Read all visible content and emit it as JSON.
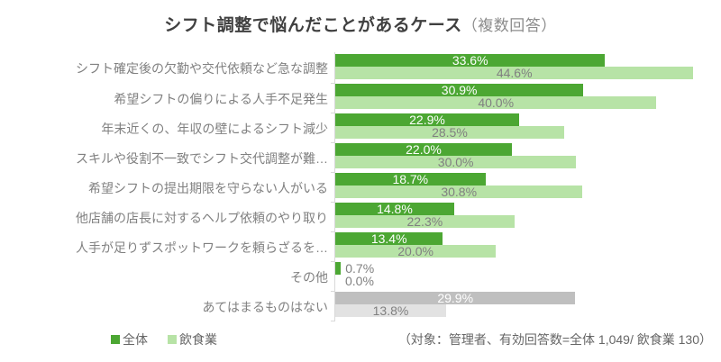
{
  "title": {
    "main": "シフト調整で悩んだことがあるケース",
    "suffix": "（複数回答）"
  },
  "footnote": "（対象：管理者、有効回答数=全体 1,049/ 飲食業 130）",
  "colors": {
    "series1": "#4CA733",
    "series2": "#B7E3A6",
    "series1_muted": "#BFBFBF",
    "series2_muted": "#E2E2E2",
    "label_on_dark": "#FFFFFF",
    "label_gray": "#808080",
    "axis": "#D9D9D9"
  },
  "chart_data": {
    "type": "bar",
    "orientation": "horizontal",
    "title": "シフト調整で悩んだことがあるケース（複数回答）",
    "categories": [
      "シフト確定後の欠勤や交代依頼など急な調整",
      "希望シフトの偏りによる人手不足発生",
      "年末近くの、年収の壁によるシフト減少",
      "スキルや役割不一致でシフト交代調整が難…",
      "希望シフトの提出期限を守らない人がいる",
      "他店舗の店長に対するヘルプ依頼のやり取り",
      "人手が足りずスポットワークを頼らざるを…",
      "その他",
      "あてはまるものはない"
    ],
    "series": [
      {
        "name": "全体",
        "values": [
          33.6,
          30.9,
          22.9,
          22.0,
          18.7,
          14.8,
          13.4,
          0.7,
          29.9
        ]
      },
      {
        "name": "飲食業",
        "values": [
          44.6,
          40.0,
          28.5,
          30.0,
          30.8,
          22.3,
          20.0,
          0.0,
          13.8
        ]
      }
    ],
    "muted_rows": [
      8
    ],
    "xlim": [
      0,
      46.8
    ],
    "value_suffix": "%",
    "grid": false,
    "legend_position": "bottom-left"
  }
}
